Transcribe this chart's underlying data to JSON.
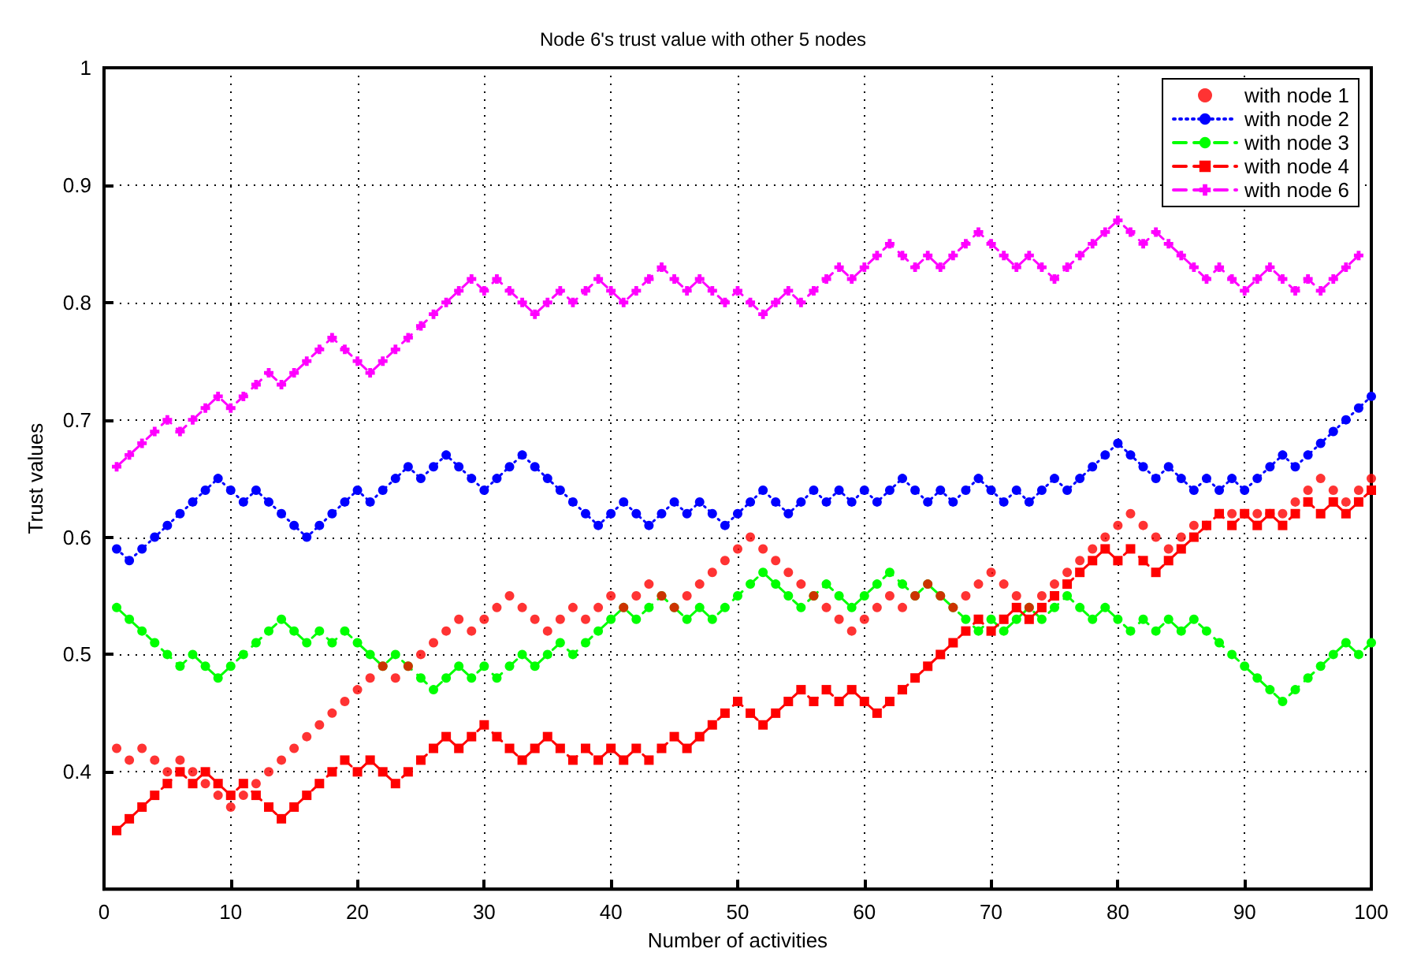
{
  "chart_data": {
    "type": "line",
    "title": "Node 6's trust value with other 5 nodes",
    "xlabel": "Number of activities",
    "ylabel": "Trust values",
    "x": [
      1,
      2,
      3,
      4,
      5,
      6,
      7,
      8,
      9,
      10,
      11,
      12,
      13,
      14,
      15,
      16,
      17,
      18,
      19,
      20,
      21,
      22,
      23,
      24,
      25,
      26,
      27,
      28,
      29,
      30,
      31,
      32,
      33,
      34,
      35,
      36,
      37,
      38,
      39,
      40,
      41,
      42,
      43,
      44,
      45,
      46,
      47,
      48,
      49,
      50,
      51,
      52,
      53,
      54,
      55,
      56,
      57,
      58,
      59,
      60,
      61,
      62,
      63,
      64,
      65,
      66,
      67,
      68,
      69,
      70,
      71,
      72,
      73,
      74,
      75,
      76,
      77,
      78,
      79,
      80,
      81,
      82,
      83,
      84,
      85,
      86,
      87,
      88,
      89,
      90,
      91,
      92,
      93,
      94,
      95,
      96,
      97,
      98,
      99,
      100
    ],
    "xlim": [
      0,
      100
    ],
    "xticks": [
      0,
      10,
      20,
      30,
      40,
      50,
      60,
      70,
      80,
      90,
      100
    ],
    "ylim": [
      0.3,
      1
    ],
    "yticks": [
      0.4,
      0.5,
      0.6,
      0.7,
      0.8,
      0.9,
      1
    ],
    "grid": true,
    "legend": "top right",
    "series": [
      {
        "name": "with node 1",
        "type": "scatter",
        "color": "#ff0000",
        "marker": "circle",
        "values": [
          0.42,
          0.41,
          0.42,
          0.41,
          0.4,
          0.41,
          0.4,
          0.39,
          0.38,
          0.37,
          0.38,
          0.39,
          0.4,
          0.41,
          0.42,
          0.43,
          0.44,
          0.45,
          0.46,
          0.47,
          0.48,
          0.49,
          0.48,
          0.49,
          0.5,
          0.51,
          0.52,
          0.53,
          0.52,
          0.53,
          0.54,
          0.55,
          0.54,
          0.53,
          0.52,
          0.53,
          0.54,
          0.53,
          0.54,
          0.55,
          0.54,
          0.55,
          0.56,
          0.55,
          0.54,
          0.55,
          0.56,
          0.57,
          0.58,
          0.59,
          0.6,
          0.59,
          0.58,
          0.57,
          0.56,
          0.55,
          0.54,
          0.53,
          0.52,
          0.53,
          0.54,
          0.55,
          0.54,
          0.55,
          0.56,
          0.55,
          0.54,
          0.55,
          0.56,
          0.57,
          0.56,
          0.55,
          0.54,
          0.55,
          0.56,
          0.57,
          0.58,
          0.59,
          0.6,
          0.61,
          0.62,
          0.61,
          0.6,
          0.59,
          0.6,
          0.61,
          0.61,
          0.62,
          0.62,
          0.62,
          0.62,
          0.62,
          0.62,
          0.63,
          0.64,
          0.65,
          0.64,
          0.63,
          0.64,
          0.65
        ]
      },
      {
        "name": "with node 2",
        "color": "#0000ff",
        "marker": "circle",
        "line_style": "dotted",
        "values": [
          0.59,
          0.58,
          0.59,
          0.6,
          0.61,
          0.62,
          0.63,
          0.64,
          0.65,
          0.64,
          0.63,
          0.64,
          0.63,
          0.62,
          0.61,
          0.6,
          0.61,
          0.62,
          0.63,
          0.64,
          0.63,
          0.64,
          0.65,
          0.66,
          0.65,
          0.66,
          0.67,
          0.66,
          0.65,
          0.64,
          0.65,
          0.66,
          0.67,
          0.66,
          0.65,
          0.64,
          0.63,
          0.62,
          0.61,
          0.62,
          0.63,
          0.62,
          0.61,
          0.62,
          0.63,
          0.62,
          0.63,
          0.62,
          0.61,
          0.62,
          0.63,
          0.64,
          0.63,
          0.62,
          0.63,
          0.64,
          0.63,
          0.64,
          0.63,
          0.64,
          0.63,
          0.64,
          0.65,
          0.64,
          0.63,
          0.64,
          0.63,
          0.64,
          0.65,
          0.64,
          0.63,
          0.64,
          0.63,
          0.64,
          0.65,
          0.64,
          0.65,
          0.66,
          0.67,
          0.68,
          0.67,
          0.66,
          0.65,
          0.66,
          0.65,
          0.64,
          0.65,
          0.64,
          0.65,
          0.64,
          0.65,
          0.66,
          0.67,
          0.66,
          0.67,
          0.68,
          0.69,
          0.7,
          0.71,
          0.72
        ]
      },
      {
        "name": "with node 3",
        "color": "#00ff00",
        "marker": "circle",
        "line_style": "dashed",
        "values": [
          0.54,
          0.53,
          0.52,
          0.51,
          0.5,
          0.49,
          0.5,
          0.49,
          0.48,
          0.49,
          0.5,
          0.51,
          0.52,
          0.53,
          0.52,
          0.51,
          0.52,
          0.51,
          0.52,
          0.51,
          0.5,
          0.49,
          0.5,
          0.49,
          0.48,
          0.47,
          0.48,
          0.49,
          0.48,
          0.49,
          0.48,
          0.49,
          0.5,
          0.49,
          0.5,
          0.51,
          0.5,
          0.51,
          0.52,
          0.53,
          0.54,
          0.53,
          0.54,
          0.55,
          0.54,
          0.53,
          0.54,
          0.53,
          0.54,
          0.55,
          0.56,
          0.57,
          0.56,
          0.55,
          0.54,
          0.55,
          0.56,
          0.55,
          0.54,
          0.55,
          0.56,
          0.57,
          0.56,
          0.55,
          0.56,
          0.55,
          0.54,
          0.53,
          0.52,
          0.53,
          0.52,
          0.53,
          0.54,
          0.53,
          0.54,
          0.55,
          0.54,
          0.53,
          0.54,
          0.53,
          0.52,
          0.53,
          0.52,
          0.53,
          0.52,
          0.53,
          0.52,
          0.51,
          0.5,
          0.49,
          0.48,
          0.47,
          0.46,
          0.47,
          0.48,
          0.49,
          0.5,
          0.51,
          0.5,
          0.51
        ]
      },
      {
        "name": "with node 4",
        "color": "#ff0000",
        "marker": "square",
        "line_style": "dashed",
        "values": [
          0.35,
          0.36,
          0.37,
          0.38,
          0.39,
          0.4,
          0.39,
          0.4,
          0.39,
          0.38,
          0.39,
          0.38,
          0.37,
          0.36,
          0.37,
          0.38,
          0.39,
          0.4,
          0.41,
          0.4,
          0.41,
          0.4,
          0.39,
          0.4,
          0.41,
          0.42,
          0.43,
          0.42,
          0.43,
          0.44,
          0.43,
          0.42,
          0.41,
          0.42,
          0.43,
          0.42,
          0.41,
          0.42,
          0.41,
          0.42,
          0.41,
          0.42,
          0.41,
          0.42,
          0.43,
          0.42,
          0.43,
          0.44,
          0.45,
          0.46,
          0.45,
          0.44,
          0.45,
          0.46,
          0.47,
          0.46,
          0.47,
          0.46,
          0.47,
          0.46,
          0.45,
          0.46,
          0.47,
          0.48,
          0.49,
          0.5,
          0.51,
          0.52,
          0.53,
          0.52,
          0.53,
          0.54,
          0.53,
          0.54,
          0.55,
          0.56,
          0.57,
          0.58,
          0.59,
          0.58,
          0.59,
          0.58,
          0.57,
          0.58,
          0.59,
          0.6,
          0.61,
          0.62,
          0.61,
          0.62,
          0.61,
          0.62,
          0.61,
          0.62,
          0.63,
          0.62,
          0.63,
          0.62,
          0.63,
          0.64
        ]
      },
      {
        "name": "with node 6",
        "color": "#ff00ff",
        "marker": "cross",
        "line_style": "dashed",
        "values": [
          0.66,
          0.67,
          0.68,
          0.69,
          0.7,
          0.69,
          0.7,
          0.71,
          0.72,
          0.71,
          0.72,
          0.73,
          0.74,
          0.73,
          0.74,
          0.75,
          0.76,
          0.77,
          0.76,
          0.75,
          0.74,
          0.75,
          0.76,
          0.77,
          0.78,
          0.79,
          0.8,
          0.81,
          0.82,
          0.81,
          0.82,
          0.81,
          0.8,
          0.79,
          0.8,
          0.81,
          0.8,
          0.81,
          0.82,
          0.81,
          0.8,
          0.81,
          0.82,
          0.83,
          0.82,
          0.81,
          0.82,
          0.81,
          0.8,
          0.81,
          0.8,
          0.79,
          0.8,
          0.81,
          0.8,
          0.81,
          0.82,
          0.83,
          0.82,
          0.83,
          0.84,
          0.85,
          0.84,
          0.83,
          0.84,
          0.83,
          0.84,
          0.85,
          0.86,
          0.85,
          0.84,
          0.83,
          0.84,
          0.83,
          0.82,
          0.83,
          0.84,
          0.85,
          0.86,
          0.87,
          0.86,
          0.85,
          0.86,
          0.85,
          0.84,
          0.83,
          0.82,
          0.83,
          0.82,
          0.81,
          0.82,
          0.83,
          0.82,
          0.81,
          0.82,
          0.81,
          0.82,
          0.83,
          0.84,
          null
        ]
      }
    ]
  }
}
